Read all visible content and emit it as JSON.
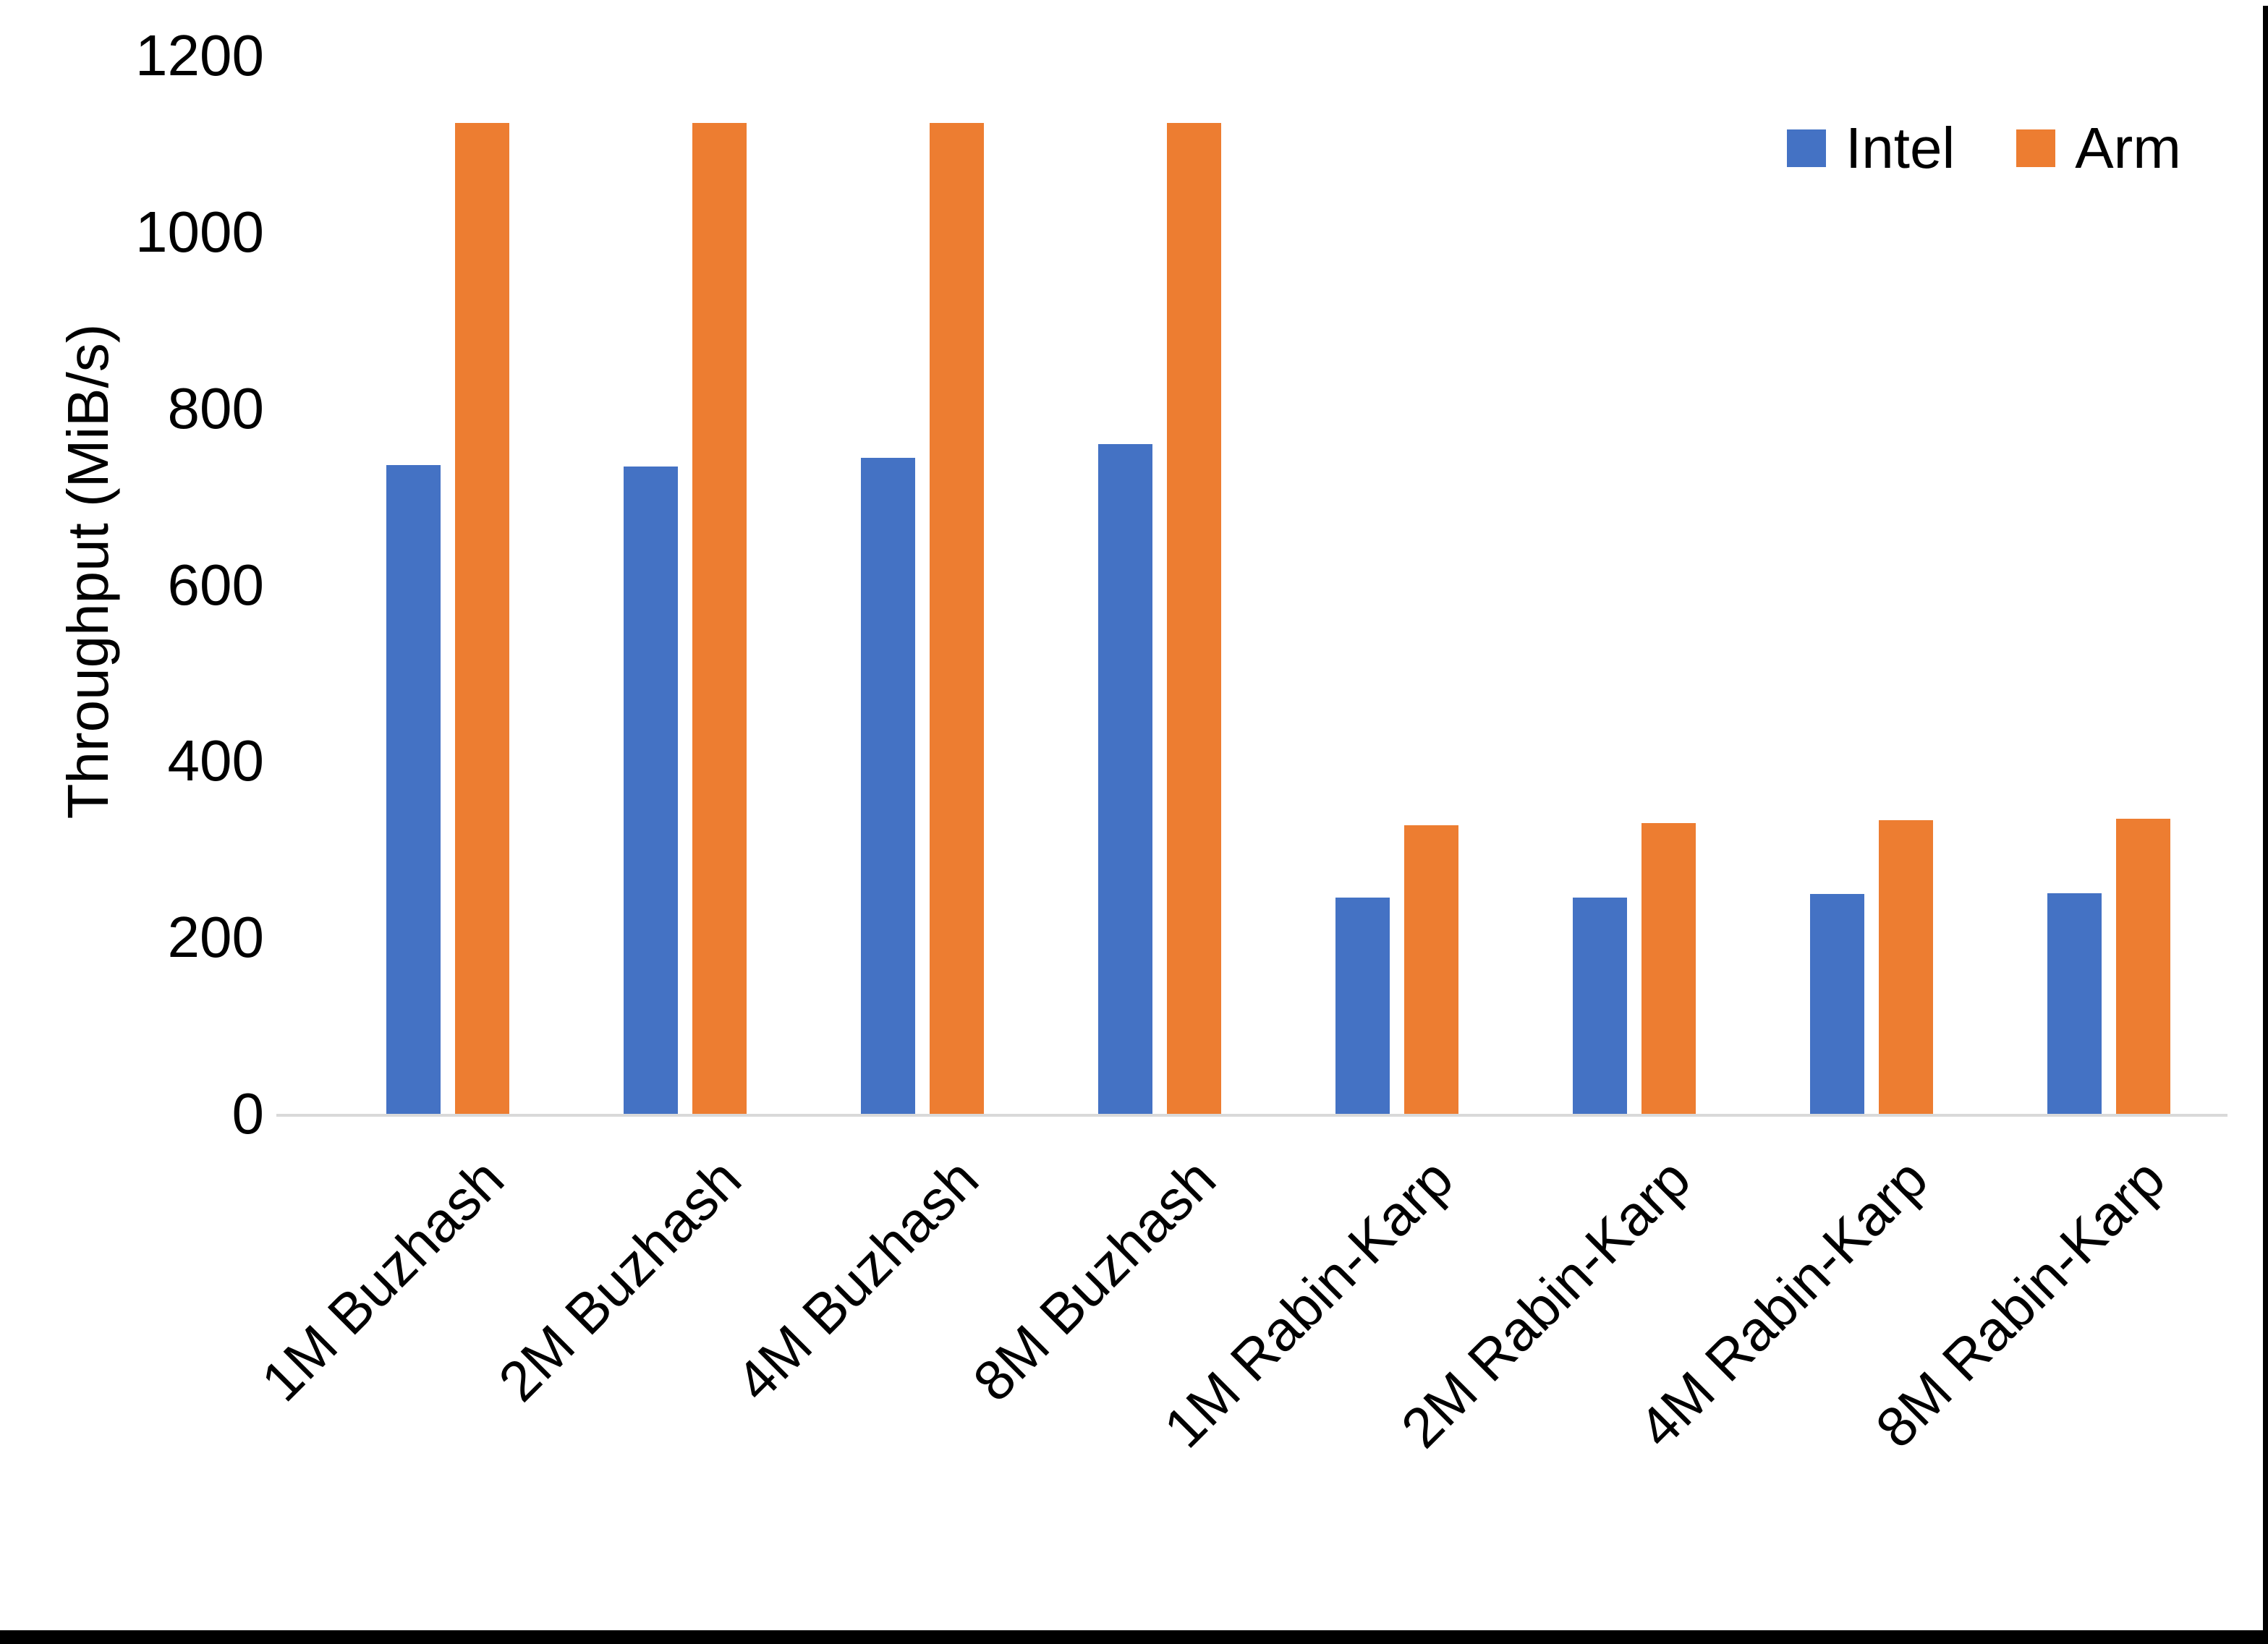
{
  "chart_data": {
    "type": "bar",
    "title": "",
    "xlabel": "",
    "ylabel": "Throughput (MiB/s)",
    "categories": [
      "1M Buzhash",
      "2M Buzhash",
      "4M Buzhash",
      "8M Buzhash",
      "1M Rabin-Karp",
      "2M Rabin-Karp",
      "4M Rabin-Karp",
      "8M Rabin-Karp"
    ],
    "series": [
      {
        "name": "Intel",
        "color": "#4472C4",
        "values": [
          736,
          734,
          744,
          760,
          245,
          245,
          249,
          250
        ]
      },
      {
        "name": "Arm",
        "color": "#ED7D31",
        "values": [
          1124,
          1124,
          1124,
          1124,
          327,
          330,
          333,
          335
        ]
      }
    ],
    "ylim": [
      0,
      1200
    ],
    "yticks": [
      0,
      200,
      400,
      600,
      800,
      1000,
      1200
    ],
    "grid": false,
    "legend_position": "top-right",
    "x_label_rotation_deg": -45
  },
  "colors": {
    "background": "#FFFFFF",
    "text": "#000000",
    "axis_line": "#D9D9D9",
    "screen_border": "#000000"
  }
}
